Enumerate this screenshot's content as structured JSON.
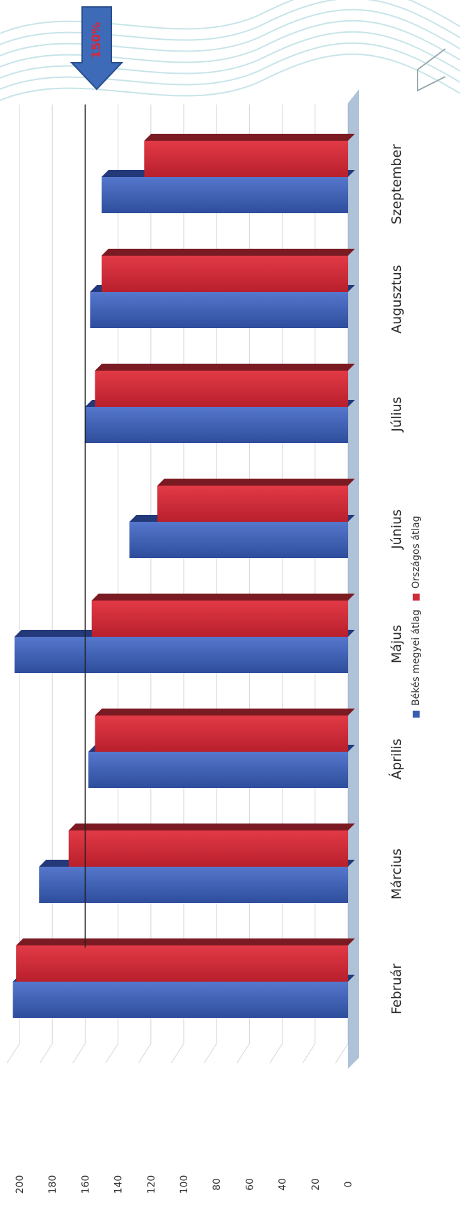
{
  "chart_data": {
    "type": "bar",
    "orientation": "horizontal",
    "categories": [
      "Február",
      "Március",
      "Április",
      "Május",
      "Június",
      "Július",
      "Augusztus",
      "Szeptember"
    ],
    "series": [
      {
        "name": "Békés megyei átlag",
        "color": "#3a5db0",
        "values": [
          204,
          188,
          158,
          203,
          133,
          160,
          157,
          150
        ]
      },
      {
        "name": "Országos átlag",
        "color": "#cf2a37",
        "values": [
          202,
          170,
          154,
          156,
          116,
          154,
          150,
          124
        ]
      }
    ],
    "xlim": [
      0,
      200
    ],
    "ticks": [
      0,
      20,
      40,
      60,
      80,
      100,
      120,
      140,
      160,
      180,
      200
    ],
    "reference_line": {
      "value": 160,
      "label": "150%"
    },
    "legend_position": "bottom",
    "grid": true,
    "title": "",
    "xlabel": "",
    "ylabel": ""
  }
}
